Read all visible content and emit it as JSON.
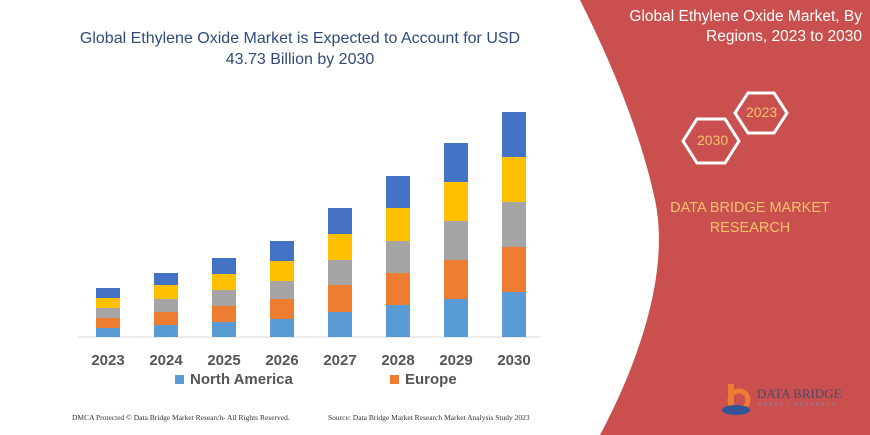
{
  "chart_data": {
    "type": "bar",
    "stacked": true,
    "title": "Global Ethylene Oxide Market is Expected to Account for USD 43.73 Billion by 2030",
    "categories": [
      "2023",
      "2024",
      "2025",
      "2026",
      "2027",
      "2028",
      "2029",
      "2030"
    ],
    "series": [
      {
        "name": "North America",
        "color": "#5B9BD5",
        "values": [
          9,
          12,
          15,
          18,
          25,
          32,
          38,
          45
        ]
      },
      {
        "name": "Europe",
        "color": "#ED7D31",
        "values": [
          10,
          13,
          16,
          20,
          27,
          32,
          39,
          45
        ]
      },
      {
        "color": "#A5A5A5",
        "values": [
          10,
          13,
          16,
          18,
          25,
          32,
          39,
          45
        ]
      },
      {
        "color": "#FFC000",
        "values": [
          10,
          14,
          16,
          20,
          26,
          33,
          39,
          45
        ]
      },
      {
        "color": "#4472C4",
        "values": [
          10,
          12,
          16,
          20,
          26,
          32,
          39,
          45
        ]
      }
    ],
    "ylim": [
      0,
      240
    ],
    "y_units_note_visible": false,
    "grid": false,
    "legend_position": "bottom"
  },
  "side_panel": {
    "title": "Global Ethylene Oxide Market, By Regions, 2023 to 2030",
    "hex_years": [
      "2030",
      "2023"
    ],
    "brand": "DATA BRIDGE MARKET RESEARCH",
    "logo": "DATA BRIDGE",
    "logo_sub": "MARKET RESEARCH",
    "color": "#C9504E"
  },
  "footer": {
    "left": "DMCA Protected © Data Bridge Market Research-  All Rights Reserved.",
    "right": "Source:  Data Bridge Market Research  Market Analysis Study 2023"
  }
}
